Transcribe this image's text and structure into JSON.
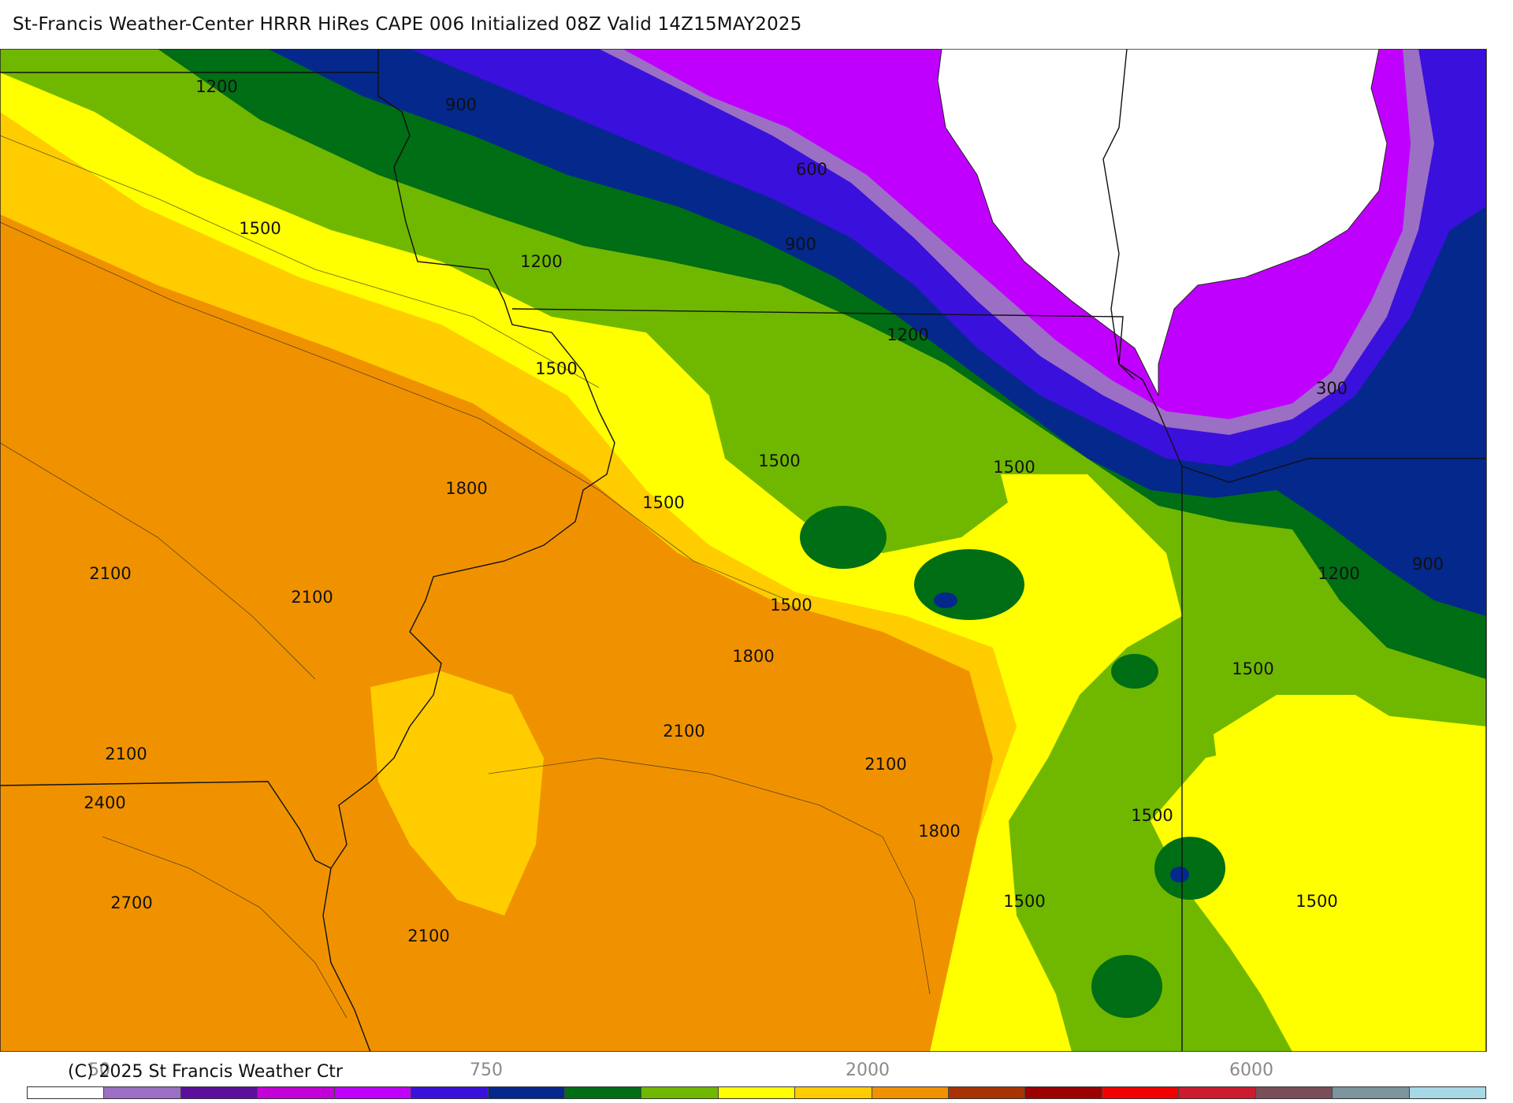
{
  "title": "St-Francis Weather-Center HRRR HiRes CAPE  006 Initialized  08Z Valid 14Z15MAY2025",
  "credit": "(C) 2025 St Francis Weather Ctr",
  "colorbar": {
    "labels": [
      "50",
      "750",
      "2000",
      "6000"
    ],
    "colors": [
      "#ffffff",
      "#9b6fc4",
      "#5c0f9c",
      "#c400d8",
      "#c000ff",
      "#3a10dc",
      "#04288c",
      "#006e14",
      "#70b800",
      "#ffff00",
      "#ffcc00",
      "#f09200",
      "#a83200",
      "#9c0000",
      "#f20000",
      "#cc1a2e",
      "#7a4e58",
      "#7c949c",
      "#a6d8e6"
    ]
  },
  "contour_labels": [
    "1200",
    "900",
    "1500",
    "1200",
    "600",
    "900",
    "1500",
    "1200",
    "300",
    "1800",
    "1500",
    "1500",
    "1500",
    "2100",
    "2100",
    "1500",
    "1800",
    "1200",
    "900",
    "1500",
    "2100",
    "2100",
    "2100",
    "2400",
    "1800",
    "1500",
    "2700",
    "2100",
    "1500",
    "1500"
  ],
  "map_colors": {
    "purple_light": "#9b6fc4",
    "magenta": "#c000ff",
    "indigo": "#3a10dc",
    "navy": "#04288c",
    "dark_green": "#006e14",
    "green": "#70b800",
    "yellow": "#ffff00",
    "gold": "#ffcc00",
    "orange": "#f09200",
    "brown": "#a83200",
    "dark_red": "#9c0000"
  }
}
